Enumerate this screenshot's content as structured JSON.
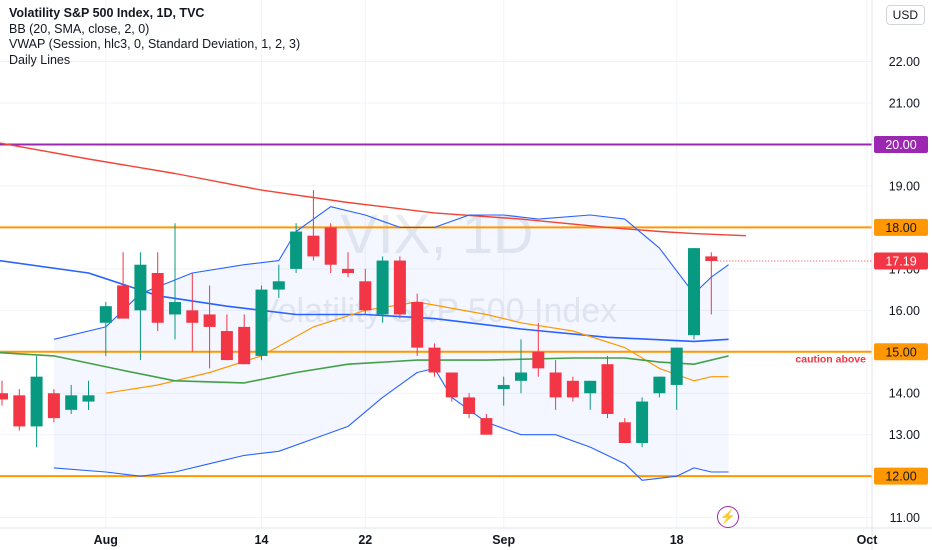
{
  "header": {
    "title": "Volatility S&P 500 Index, 1D, TVC",
    "indicators": [
      "BB (20, SMA, close, 2, 0)",
      "VWAP (Session, hlc3, 0, Standard Deviation, 1, 2, 3)",
      "Daily Lines"
    ],
    "currency": "USD"
  },
  "watermark": {
    "symbol": "VIX, 1D",
    "name": "Volatility S&P 500 Index"
  },
  "colors": {
    "up": "#089981",
    "down": "#f23645",
    "orange_line": "#ff9800",
    "purple_line": "#9c27b0",
    "sma_red": "#f44336",
    "bb": "#2962ff",
    "orange_ma": "#ff9800",
    "green_ma": "#43a047"
  },
  "chart_data": {
    "type": "candlestick",
    "ylim": [
      10.75,
      23.05
    ],
    "y_ticks": [
      "11.00",
      "12.00",
      "13.00",
      "14.00",
      "15.00",
      "16.00",
      "17.00",
      "18.00",
      "19.00",
      "20.00",
      "21.00",
      "22.00"
    ],
    "x_tick_labels": [
      "Aug",
      "14",
      "22",
      "Sep",
      "18",
      "Oct"
    ],
    "x_tick_index": [
      6,
      15,
      21,
      29,
      39,
      50
    ],
    "last_price": "17.19",
    "horizontal_lines": [
      {
        "price": 20.0,
        "label": "20.00",
        "color": "#9c27b0"
      },
      {
        "price": 18.0,
        "label": "18.00",
        "color": "#ff9800"
      },
      {
        "price": 15.0,
        "label": "15.00",
        "color": "#ff9800",
        "annotation": "caution above"
      },
      {
        "price": 12.0,
        "label": "12.00",
        "color": "#ff9800"
      }
    ],
    "candles": [
      {
        "o": 14.0,
        "h": 14.3,
        "l": 13.7,
        "c": 13.85
      },
      {
        "o": 13.95,
        "h": 14.1,
        "l": 13.1,
        "c": 13.2
      },
      {
        "o": 13.2,
        "h": 14.9,
        "l": 12.7,
        "c": 14.4
      },
      {
        "o": 14.0,
        "h": 14.1,
        "l": 13.3,
        "c": 13.4
      },
      {
        "o": 13.6,
        "h": 14.2,
        "l": 13.5,
        "c": 13.95
      },
      {
        "o": 13.8,
        "h": 14.3,
        "l": 13.6,
        "c": 13.95
      },
      {
        "o": 15.7,
        "h": 16.2,
        "l": 14.9,
        "c": 16.1
      },
      {
        "o": 16.6,
        "h": 17.4,
        "l": 15.9,
        "c": 15.8
      },
      {
        "o": 16.0,
        "h": 17.4,
        "l": 14.8,
        "c": 17.1
      },
      {
        "o": 16.9,
        "h": 17.4,
        "l": 15.5,
        "c": 15.7
      },
      {
        "o": 15.9,
        "h": 18.1,
        "l": 15.3,
        "c": 16.2
      },
      {
        "o": 16.0,
        "h": 16.9,
        "l": 15.0,
        "c": 15.7
      },
      {
        "o": 15.9,
        "h": 16.6,
        "l": 14.6,
        "c": 15.6
      },
      {
        "o": 15.5,
        "h": 15.9,
        "l": 14.8,
        "c": 14.8
      },
      {
        "o": 15.6,
        "h": 15.9,
        "l": 14.7,
        "c": 14.7
      },
      {
        "o": 14.9,
        "h": 16.6,
        "l": 14.8,
        "c": 16.5
      },
      {
        "o": 16.5,
        "h": 17.1,
        "l": 16.3,
        "c": 16.7
      },
      {
        "o": 17.0,
        "h": 18.1,
        "l": 16.9,
        "c": 17.9
      },
      {
        "o": 17.8,
        "h": 18.9,
        "l": 17.2,
        "c": 17.3
      },
      {
        "o": 18.0,
        "h": 18.1,
        "l": 16.9,
        "c": 17.1
      },
      {
        "o": 17.0,
        "h": 17.4,
        "l": 16.8,
        "c": 16.9
      },
      {
        "o": 16.7,
        "h": 17.0,
        "l": 15.9,
        "c": 16.0
      },
      {
        "o": 15.9,
        "h": 17.3,
        "l": 15.7,
        "c": 17.2
      },
      {
        "o": 17.2,
        "h": 17.3,
        "l": 15.8,
        "c": 15.9
      },
      {
        "o": 16.2,
        "h": 16.4,
        "l": 14.9,
        "c": 15.1
      },
      {
        "o": 15.1,
        "h": 15.2,
        "l": 14.4,
        "c": 14.5
      },
      {
        "o": 14.5,
        "h": 14.5,
        "l": 13.8,
        "c": 13.9
      },
      {
        "o": 13.9,
        "h": 14.0,
        "l": 13.4,
        "c": 13.5
      },
      {
        "o": 13.4,
        "h": 13.5,
        "l": 13.0,
        "c": 13.0
      },
      {
        "o": 14.1,
        "h": 14.4,
        "l": 13.7,
        "c": 14.2
      },
      {
        "o": 14.3,
        "h": 15.3,
        "l": 14.0,
        "c": 14.5
      },
      {
        "o": 15.0,
        "h": 15.7,
        "l": 14.4,
        "c": 14.6
      },
      {
        "o": 14.5,
        "h": 14.8,
        "l": 13.6,
        "c": 13.9
      },
      {
        "o": 14.3,
        "h": 14.4,
        "l": 13.8,
        "c": 13.9
      },
      {
        "o": 14.0,
        "h": 14.3,
        "l": 13.6,
        "c": 14.3
      },
      {
        "o": 14.7,
        "h": 14.9,
        "l": 13.4,
        "c": 13.5
      },
      {
        "o": 13.3,
        "h": 13.4,
        "l": 12.8,
        "c": 12.8
      },
      {
        "o": 12.8,
        "h": 13.9,
        "l": 12.7,
        "c": 13.8
      },
      {
        "o": 14.0,
        "h": 14.4,
        "l": 13.9,
        "c": 14.4
      },
      {
        "o": 14.2,
        "h": 15.1,
        "l": 13.6,
        "c": 15.1
      },
      {
        "o": 15.4,
        "h": 17.5,
        "l": 15.3,
        "c": 17.5
      },
      {
        "o": 17.3,
        "h": 17.4,
        "l": 15.9,
        "c": 17.19
      }
    ],
    "series": [
      {
        "style": "sma_red",
        "points": [
          [
            -1,
            20.1
          ],
          [
            5,
            19.65
          ],
          [
            10,
            19.3
          ],
          [
            15,
            18.9
          ],
          [
            20,
            18.6
          ],
          [
            25,
            18.35
          ],
          [
            30,
            18.2
          ],
          [
            35,
            18.0
          ],
          [
            38,
            17.9
          ],
          [
            40,
            17.85
          ],
          [
            43,
            17.8
          ]
        ]
      },
      {
        "style": "bb_upper",
        "points": [
          [
            3,
            15.3
          ],
          [
            6,
            15.6
          ],
          [
            8,
            16.4
          ],
          [
            11,
            16.9
          ],
          [
            14,
            17.1
          ],
          [
            16,
            17.2
          ],
          [
            17,
            17.9
          ],
          [
            19,
            18.5
          ],
          [
            21,
            18.3
          ],
          [
            23,
            18.0
          ],
          [
            25,
            18.0
          ],
          [
            27,
            18.3
          ],
          [
            29,
            18.3
          ],
          [
            31,
            18.2
          ],
          [
            34,
            18.3
          ],
          [
            36,
            18.2
          ],
          [
            38,
            17.5
          ],
          [
            40,
            16.4
          ],
          [
            41,
            16.8
          ],
          [
            42,
            17.1
          ]
        ]
      },
      {
        "style": "bb_lower",
        "points": [
          [
            3,
            12.2
          ],
          [
            6,
            12.1
          ],
          [
            8,
            12.0
          ],
          [
            10,
            12.1
          ],
          [
            12,
            12.3
          ],
          [
            14,
            12.5
          ],
          [
            16,
            12.6
          ],
          [
            18,
            12.9
          ],
          [
            20,
            13.2
          ],
          [
            22,
            13.9
          ],
          [
            24,
            14.5
          ],
          [
            25,
            14.6
          ],
          [
            26,
            13.9
          ],
          [
            28,
            13.3
          ],
          [
            30,
            13.0
          ],
          [
            32,
            13.0
          ],
          [
            34,
            12.7
          ],
          [
            36,
            12.3
          ],
          [
            37,
            11.9
          ],
          [
            39,
            12.0
          ],
          [
            40,
            12.2
          ],
          [
            41,
            12.1
          ],
          [
            42,
            12.1
          ]
        ]
      },
      {
        "style": "sma_blue",
        "points": [
          [
            -1,
            17.25
          ],
          [
            5,
            16.9
          ],
          [
            9,
            16.35
          ],
          [
            13,
            16.1
          ],
          [
            17,
            15.9
          ],
          [
            21,
            15.9
          ],
          [
            25,
            15.8
          ],
          [
            30,
            15.55
          ],
          [
            35,
            15.35
          ],
          [
            40,
            15.25
          ],
          [
            42,
            15.3
          ]
        ]
      },
      {
        "style": "ma_orange",
        "points": [
          [
            6,
            14.0
          ],
          [
            9,
            14.2
          ],
          [
            12,
            14.5
          ],
          [
            15,
            14.9
          ],
          [
            18,
            15.6
          ],
          [
            21,
            16.0
          ],
          [
            24,
            16.2
          ],
          [
            28,
            15.9
          ],
          [
            30,
            15.7
          ],
          [
            33,
            15.5
          ],
          [
            36,
            15.1
          ],
          [
            38,
            14.6
          ],
          [
            40,
            14.3
          ],
          [
            41,
            14.4
          ],
          [
            42,
            14.4
          ]
        ]
      },
      {
        "style": "ma_green",
        "points": [
          [
            -1,
            15.0
          ],
          [
            3,
            14.9
          ],
          [
            7,
            14.55
          ],
          [
            10,
            14.3
          ],
          [
            14,
            14.25
          ],
          [
            17,
            14.5
          ],
          [
            20,
            14.7
          ],
          [
            24,
            14.8
          ],
          [
            28,
            14.8
          ],
          [
            33,
            14.85
          ],
          [
            36,
            14.85
          ],
          [
            38,
            14.75
          ],
          [
            40,
            14.7
          ],
          [
            42,
            14.9
          ]
        ]
      }
    ]
  }
}
